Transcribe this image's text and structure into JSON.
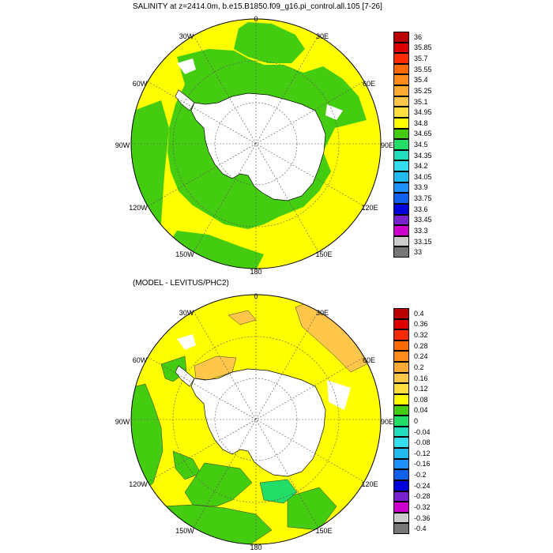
{
  "panels": [
    {
      "title": "SALINITY at z=2414.0m, b.e15.B1850.f09_g16.pi_control.all.105 [7-26]",
      "legend_levels": [
        "36",
        "35.85",
        "35.7",
        "35.55",
        "35.4",
        "35.25",
        "35.1",
        "34.95",
        "34.8",
        "34.65",
        "34.5",
        "34.35",
        "34.2",
        "34.05",
        "33.9",
        "33.75",
        "33.6",
        "33.45",
        "33.3",
        "33.15",
        "33"
      ],
      "legend_colors": [
        "#bb0000",
        "#dd0000",
        "#ff2a00",
        "#ff6a00",
        "#ff8c1a",
        "#ffaa33",
        "#ffc64a",
        "#ffe040",
        "#ffff00",
        "#44cc11",
        "#22dd66",
        "#22ddbb",
        "#33ddee",
        "#22bbee",
        "#1e90ff",
        "#1060ee",
        "#0000dd",
        "#7722cc",
        "#cc00cc",
        "#cccccc",
        "#777777"
      ]
    },
    {
      "title": "(MODEL - LEVITUS/PHC2)",
      "legend_levels": [
        "0.4",
        "0.36",
        "0.32",
        "0.28",
        "0.24",
        "0.2",
        "0.16",
        "0.12",
        "0.08",
        "0.04",
        "0",
        "-0.04",
        "-0.08",
        "-0.12",
        "-0.16",
        "-0.2",
        "-0.24",
        "-0.28",
        "-0.32",
        "-0.36",
        "-0.4"
      ],
      "legend_colors": [
        "#bb0000",
        "#dd0000",
        "#ff2a00",
        "#ff6a00",
        "#ff8c1a",
        "#ffaa33",
        "#ffc64a",
        "#ffe040",
        "#ffff00",
        "#44cc11",
        "#22dd66",
        "#22ddbb",
        "#33ddee",
        "#22bbee",
        "#1e90ff",
        "#1060ee",
        "#0000dd",
        "#7722cc",
        "#cc00cc",
        "#cccccc",
        "#777777"
      ]
    }
  ],
  "longitude_labels": [
    "0",
    "30E",
    "60E",
    "90E",
    "120E",
    "150E",
    "180",
    "150W",
    "120W",
    "90W",
    "60W",
    "30W"
  ],
  "map_colors": {
    "land": "#ffffff",
    "top_fill": "#ffff00",
    "top_deep": "#44cc11",
    "bottom_fill": "#ffff00",
    "bottom_green": "#44cc11",
    "bottom_orange": "#ffc64a",
    "bottom_cyan": "#22dd66"
  }
}
